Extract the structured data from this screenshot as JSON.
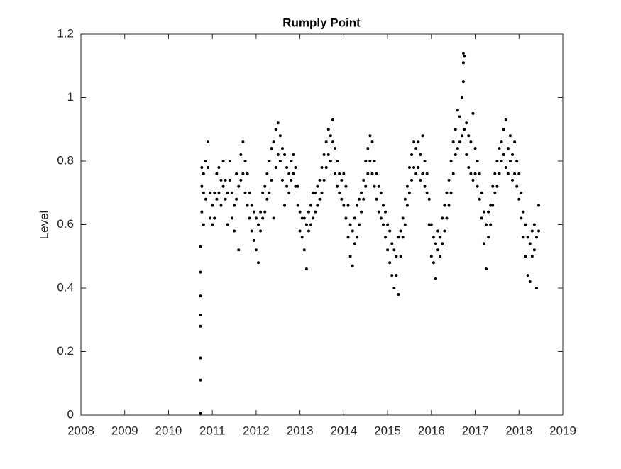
{
  "chart_data": {
    "type": "scatter",
    "title": "Rumply Point",
    "ylabel": "Level",
    "color": "#000000",
    "xlim": [
      2008,
      2019
    ],
    "xticks": [
      2008,
      2009,
      2010,
      2011,
      2012,
      2013,
      2014,
      2015,
      2016,
      2017,
      2018,
      2019
    ],
    "ylim": [
      0,
      1.2
    ],
    "yticks": [
      0,
      0.2,
      0.4,
      0.6,
      0.8,
      1,
      1.2
    ],
    "x": [
      2010.73,
      2010.73,
      2010.73,
      2010.73,
      2010.73,
      2010.73,
      2010.73,
      2010.73,
      2010.76,
      2010.76,
      2010.76,
      2010.8,
      2010.8,
      2010.8,
      2010.85,
      2010.85,
      2010.9,
      2010.9,
      2010.95,
      2010.95,
      2011.0,
      2011.0,
      2011.05,
      2011.05,
      2011.1,
      2011.1,
      2011.15,
      2011.15,
      2011.2,
      2011.2,
      2011.25,
      2011.25,
      2011.3,
      2011.3,
      2011.35,
      2011.35,
      2011.4,
      2011.4,
      2011.45,
      2011.45,
      2011.5,
      2011.5,
      2011.55,
      2011.55,
      2011.6,
      2011.6,
      2011.65,
      2011.65,
      2011.7,
      2011.7,
      2011.75,
      2011.75,
      2011.8,
      2011.8,
      2011.85,
      2011.85,
      2011.9,
      2011.9,
      2011.95,
      2011.95,
      2012.0,
      2012.0,
      2012.05,
      2012.05,
      2012.1,
      2012.1,
      2012.15,
      2012.15,
      2012.2,
      2012.2,
      2012.25,
      2012.25,
      2012.3,
      2012.3,
      2012.35,
      2012.35,
      2012.4,
      2012.4,
      2012.45,
      2012.45,
      2012.5,
      2012.5,
      2012.55,
      2012.55,
      2012.6,
      2012.6,
      2012.65,
      2012.65,
      2012.7,
      2012.7,
      2012.75,
      2012.75,
      2012.8,
      2012.8,
      2012.85,
      2012.85,
      2012.9,
      2012.9,
      2012.95,
      2012.95,
      2013.0,
      2013.0,
      2013.05,
      2013.05,
      2013.1,
      2013.1,
      2013.15,
      2013.15,
      2013.2,
      2013.2,
      2013.25,
      2013.25,
      2013.3,
      2013.3,
      2013.35,
      2013.35,
      2013.4,
      2013.4,
      2013.45,
      2013.45,
      2013.5,
      2013.5,
      2013.55,
      2013.55,
      2013.6,
      2013.6,
      2013.65,
      2013.65,
      2013.7,
      2013.7,
      2013.75,
      2013.75,
      2013.8,
      2013.8,
      2013.85,
      2013.85,
      2013.9,
      2013.9,
      2013.95,
      2013.95,
      2014.0,
      2014.0,
      2014.05,
      2014.05,
      2014.1,
      2014.1,
      2014.15,
      2014.15,
      2014.2,
      2014.2,
      2014.25,
      2014.25,
      2014.3,
      2014.3,
      2014.35,
      2014.35,
      2014.4,
      2014.4,
      2014.45,
      2014.45,
      2014.5,
      2014.5,
      2014.55,
      2014.55,
      2014.6,
      2014.6,
      2014.65,
      2014.65,
      2014.7,
      2014.7,
      2014.75,
      2014.75,
      2014.8,
      2014.8,
      2014.85,
      2014.85,
      2014.9,
      2014.9,
      2014.95,
      2014.95,
      2015.0,
      2015.0,
      2015.05,
      2015.05,
      2015.1,
      2015.1,
      2015.15,
      2015.15,
      2015.2,
      2015.2,
      2015.25,
      2015.25,
      2015.3,
      2015.3,
      2015.35,
      2015.35,
      2015.4,
      2015.4,
      2015.45,
      2015.45,
      2015.5,
      2015.5,
      2015.55,
      2015.55,
      2015.6,
      2015.6,
      2015.65,
      2015.65,
      2015.7,
      2015.7,
      2015.75,
      2015.75,
      2015.8,
      2015.8,
      2015.85,
      2015.85,
      2015.9,
      2015.9,
      2015.95,
      2015.95,
      2016.0,
      2016.0,
      2016.05,
      2016.05,
      2016.1,
      2016.1,
      2016.15,
      2016.15,
      2016.2,
      2016.2,
      2016.25,
      2016.25,
      2016.3,
      2016.3,
      2016.35,
      2016.35,
      2016.4,
      2016.4,
      2016.45,
      2016.45,
      2016.5,
      2016.5,
      2016.55,
      2016.55,
      2016.6,
      2016.6,
      2016.65,
      2016.65,
      2016.7,
      2016.7,
      2016.73,
      2016.73,
      2016.73,
      2016.75,
      2016.75,
      2016.8,
      2016.8,
      2016.85,
      2016.85,
      2016.9,
      2016.9,
      2016.95,
      2016.95,
      2017.0,
      2017.0,
      2017.05,
      2017.05,
      2017.1,
      2017.1,
      2017.15,
      2017.15,
      2017.2,
      2017.2,
      2017.25,
      2017.25,
      2017.3,
      2017.3,
      2017.35,
      2017.35,
      2017.4,
      2017.4,
      2017.45,
      2017.45,
      2017.5,
      2017.5,
      2017.55,
      2017.55,
      2017.6,
      2017.6,
      2017.65,
      2017.65,
      2017.7,
      2017.7,
      2017.75,
      2017.75,
      2017.8,
      2017.8,
      2017.85,
      2017.85,
      2017.9,
      2017.9,
      2017.95,
      2017.95,
      2018.0,
      2018.0,
      2018.05,
      2018.05,
      2018.1,
      2018.1,
      2018.15,
      2018.15,
      2018.2,
      2018.2,
      2018.25,
      2018.25,
      2018.3,
      2018.3,
      2018.35,
      2018.35,
      2018.4,
      2018.4,
      2018.45,
      2018.45
    ],
    "values": [
      0.005,
      0.11,
      0.18,
      0.28,
      0.315,
      0.375,
      0.45,
      0.53,
      0.64,
      0.72,
      0.78,
      0.6,
      0.7,
      0.76,
      0.68,
      0.8,
      0.78,
      0.86,
      0.62,
      0.7,
      0.6,
      0.66,
      0.62,
      0.7,
      0.68,
      0.76,
      0.7,
      0.78,
      0.66,
      0.74,
      0.72,
      0.8,
      0.68,
      0.74,
      0.6,
      0.7,
      0.74,
      0.8,
      0.62,
      0.7,
      0.58,
      0.66,
      0.68,
      0.76,
      0.52,
      0.72,
      0.74,
      0.82,
      0.76,
      0.86,
      0.7,
      0.8,
      0.66,
      0.76,
      0.62,
      0.7,
      0.58,
      0.66,
      0.55,
      0.64,
      0.52,
      0.62,
      0.48,
      0.6,
      0.58,
      0.64,
      0.62,
      0.7,
      0.64,
      0.72,
      0.68,
      0.76,
      0.7,
      0.8,
      0.74,
      0.84,
      0.62,
      0.86,
      0.78,
      0.9,
      0.82,
      0.92,
      0.8,
      0.88,
      0.74,
      0.84,
      0.66,
      0.82,
      0.72,
      0.78,
      0.7,
      0.76,
      0.74,
      0.8,
      0.76,
      0.82,
      0.72,
      0.78,
      0.66,
      0.72,
      0.58,
      0.64,
      0.56,
      0.62,
      0.52,
      0.62,
      0.46,
      0.6,
      0.58,
      0.64,
      0.6,
      0.66,
      0.62,
      0.7,
      0.64,
      0.7,
      0.66,
      0.72,
      0.68,
      0.74,
      0.7,
      0.78,
      0.74,
      0.82,
      0.78,
      0.86,
      0.82,
      0.9,
      0.8,
      0.88,
      0.86,
      0.93,
      0.76,
      0.84,
      0.72,
      0.8,
      0.7,
      0.76,
      0.68,
      0.74,
      0.66,
      0.76,
      0.62,
      0.72,
      0.56,
      0.66,
      0.5,
      0.6,
      0.47,
      0.58,
      0.54,
      0.62,
      0.56,
      0.66,
      0.6,
      0.68,
      0.64,
      0.7,
      0.68,
      0.74,
      0.72,
      0.8,
      0.76,
      0.84,
      0.8,
      0.88,
      0.76,
      0.86,
      0.72,
      0.8,
      0.68,
      0.76,
      0.64,
      0.72,
      0.62,
      0.7,
      0.6,
      0.66,
      0.56,
      0.64,
      0.52,
      0.6,
      0.48,
      0.58,
      0.44,
      0.54,
      0.4,
      0.52,
      0.44,
      0.5,
      0.38,
      0.56,
      0.5,
      0.58,
      0.56,
      0.62,
      0.6,
      0.68,
      0.66,
      0.72,
      0.7,
      0.78,
      0.74,
      0.82,
      0.78,
      0.86,
      0.76,
      0.84,
      0.78,
      0.86,
      0.74,
      0.82,
      0.76,
      0.88,
      0.72,
      0.8,
      0.7,
      0.76,
      0.6,
      0.68,
      0.5,
      0.6,
      0.48,
      0.56,
      0.43,
      0.54,
      0.52,
      0.58,
      0.5,
      0.56,
      0.54,
      0.62,
      0.58,
      0.66,
      0.62,
      0.7,
      0.66,
      0.74,
      0.7,
      0.8,
      0.76,
      0.86,
      0.82,
      0.9,
      0.84,
      0.96,
      0.86,
      0.94,
      0.88,
      1.0,
      1.05,
      1.11,
      1.14,
      0.9,
      1.13,
      0.82,
      0.92,
      0.78,
      0.88,
      0.76,
      0.86,
      0.74,
      0.95,
      0.76,
      0.84,
      0.72,
      0.8,
      0.68,
      0.76,
      0.62,
      0.7,
      0.54,
      0.64,
      0.46,
      0.6,
      0.56,
      0.64,
      0.6,
      0.66,
      0.66,
      0.72,
      0.7,
      0.76,
      0.72,
      0.8,
      0.76,
      0.84,
      0.8,
      0.86,
      0.82,
      0.9,
      0.78,
      0.93,
      0.76,
      0.84,
      0.8,
      0.88,
      0.74,
      0.82,
      0.76,
      0.86,
      0.72,
      0.8,
      0.68,
      0.76,
      0.62,
      0.7,
      0.56,
      0.64,
      0.5,
      0.6,
      0.44,
      0.56,
      0.42,
      0.54,
      0.5,
      0.58,
      0.52,
      0.6,
      0.4,
      0.56,
      0.58,
      0.66
    ]
  }
}
